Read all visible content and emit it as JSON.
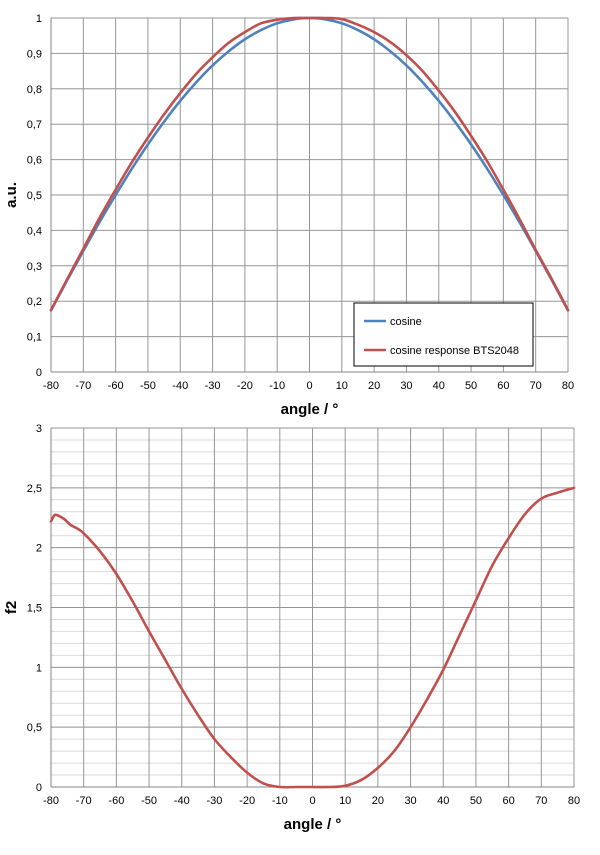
{
  "chart_data": [
    {
      "type": "line",
      "xlabel": "angle / °",
      "ylabel": "a.u.",
      "xlim": [
        -80,
        80
      ],
      "ylim": [
        0,
        1
      ],
      "x_ticks": [
        -80,
        -70,
        -60,
        -50,
        -40,
        -30,
        -20,
        -10,
        0,
        10,
        20,
        30,
        40,
        50,
        60,
        70,
        80
      ],
      "y_ticks": [
        0,
        0.1,
        0.2,
        0.3,
        0.4,
        0.5,
        0.6,
        0.7,
        0.8,
        0.9,
        1
      ],
      "x_tick_labels": [
        "-80",
        "-70",
        "-60",
        "-50",
        "-40",
        "-30",
        "-20",
        "-10",
        "0",
        "10",
        "20",
        "30",
        "40",
        "50",
        "60",
        "70",
        "80"
      ],
      "y_tick_labels": [
        "0",
        "0,1",
        "0,2",
        "0,3",
        "0,4",
        "0,5",
        "0,6",
        "0,7",
        "0,8",
        "0,9",
        "1"
      ],
      "grid": true,
      "legend_position": "bottom-right",
      "series": [
        {
          "name": "cosine",
          "color": "#4F81BD",
          "x": [
            -80,
            -75,
            -70,
            -65,
            -60,
            -55,
            -50,
            -45,
            -40,
            -35,
            -30,
            -25,
            -20,
            -15,
            -10,
            -5,
            0,
            5,
            10,
            15,
            20,
            25,
            30,
            35,
            40,
            45,
            50,
            55,
            60,
            65,
            70,
            75,
            80
          ],
          "values": [
            0.174,
            0.259,
            0.342,
            0.423,
            0.5,
            0.574,
            0.643,
            0.707,
            0.766,
            0.819,
            0.866,
            0.906,
            0.94,
            0.966,
            0.985,
            0.996,
            1,
            0.996,
            0.985,
            0.966,
            0.94,
            0.906,
            0.866,
            0.819,
            0.766,
            0.707,
            0.643,
            0.574,
            0.5,
            0.423,
            0.342,
            0.259,
            0.174
          ]
        },
        {
          "name": "cosine response BTS2048",
          "color": "#C0504D",
          "x": [
            -80,
            -75,
            -70,
            -65,
            -60,
            -55,
            -50,
            -45,
            -40,
            -35,
            -30,
            -25,
            -20,
            -15,
            -10,
            -5,
            0,
            5,
            10,
            15,
            20,
            25,
            30,
            35,
            40,
            45,
            50,
            55,
            60,
            65,
            70,
            75,
            80
          ],
          "values": [
            0.175,
            0.262,
            0.348,
            0.435,
            0.515,
            0.592,
            0.662,
            0.728,
            0.788,
            0.843,
            0.889,
            0.93,
            0.96,
            0.985,
            0.995,
            1,
            1,
            1,
            0.997,
            0.981,
            0.96,
            0.932,
            0.895,
            0.85,
            0.795,
            0.735,
            0.667,
            0.595,
            0.515,
            0.432,
            0.345,
            0.262,
            0.175
          ]
        }
      ]
    },
    {
      "type": "line",
      "xlabel": "angle / °",
      "ylabel": "f2",
      "xlim": [
        -80,
        80
      ],
      "ylim": [
        0,
        3
      ],
      "x_ticks": [
        -80,
        -70,
        -60,
        -50,
        -40,
        -30,
        -20,
        -10,
        0,
        10,
        20,
        30,
        40,
        50,
        60,
        70,
        80
      ],
      "y_ticks": [
        0,
        0.5,
        1,
        1.5,
        2,
        2.5,
        3
      ],
      "y_minor_step": 0.1,
      "x_tick_labels": [
        "-80",
        "-70",
        "-60",
        "-50",
        "-40",
        "-30",
        "-20",
        "-10",
        "0",
        "10",
        "20",
        "30",
        "40",
        "50",
        "60",
        "70",
        "80"
      ],
      "y_tick_labels": [
        "0",
        "0,5",
        "1",
        "1,5",
        "2",
        "2,5",
        "3"
      ],
      "grid": true,
      "series": [
        {
          "color": "#C0504D",
          "x": [
            -80,
            -79,
            -78,
            -76,
            -74,
            -72,
            -70,
            -65,
            -60,
            -55,
            -50,
            -45,
            -40,
            -35,
            -30,
            -25,
            -20,
            -15,
            -10,
            -5,
            0,
            5,
            10,
            15,
            20,
            25,
            30,
            35,
            40,
            45,
            50,
            55,
            60,
            65,
            70,
            75,
            80
          ],
          "values": [
            2.22,
            2.27,
            2.27,
            2.24,
            2.19,
            2.16,
            2.12,
            1.97,
            1.78,
            1.55,
            1.3,
            1.06,
            0.82,
            0.6,
            0.4,
            0.25,
            0.12,
            0.03,
            0,
            0,
            0,
            0,
            0.01,
            0.06,
            0.16,
            0.3,
            0.5,
            0.73,
            0.98,
            1.27,
            1.56,
            1.85,
            2.08,
            2.28,
            2.41,
            2.46,
            2.5
          ]
        }
      ]
    }
  ]
}
